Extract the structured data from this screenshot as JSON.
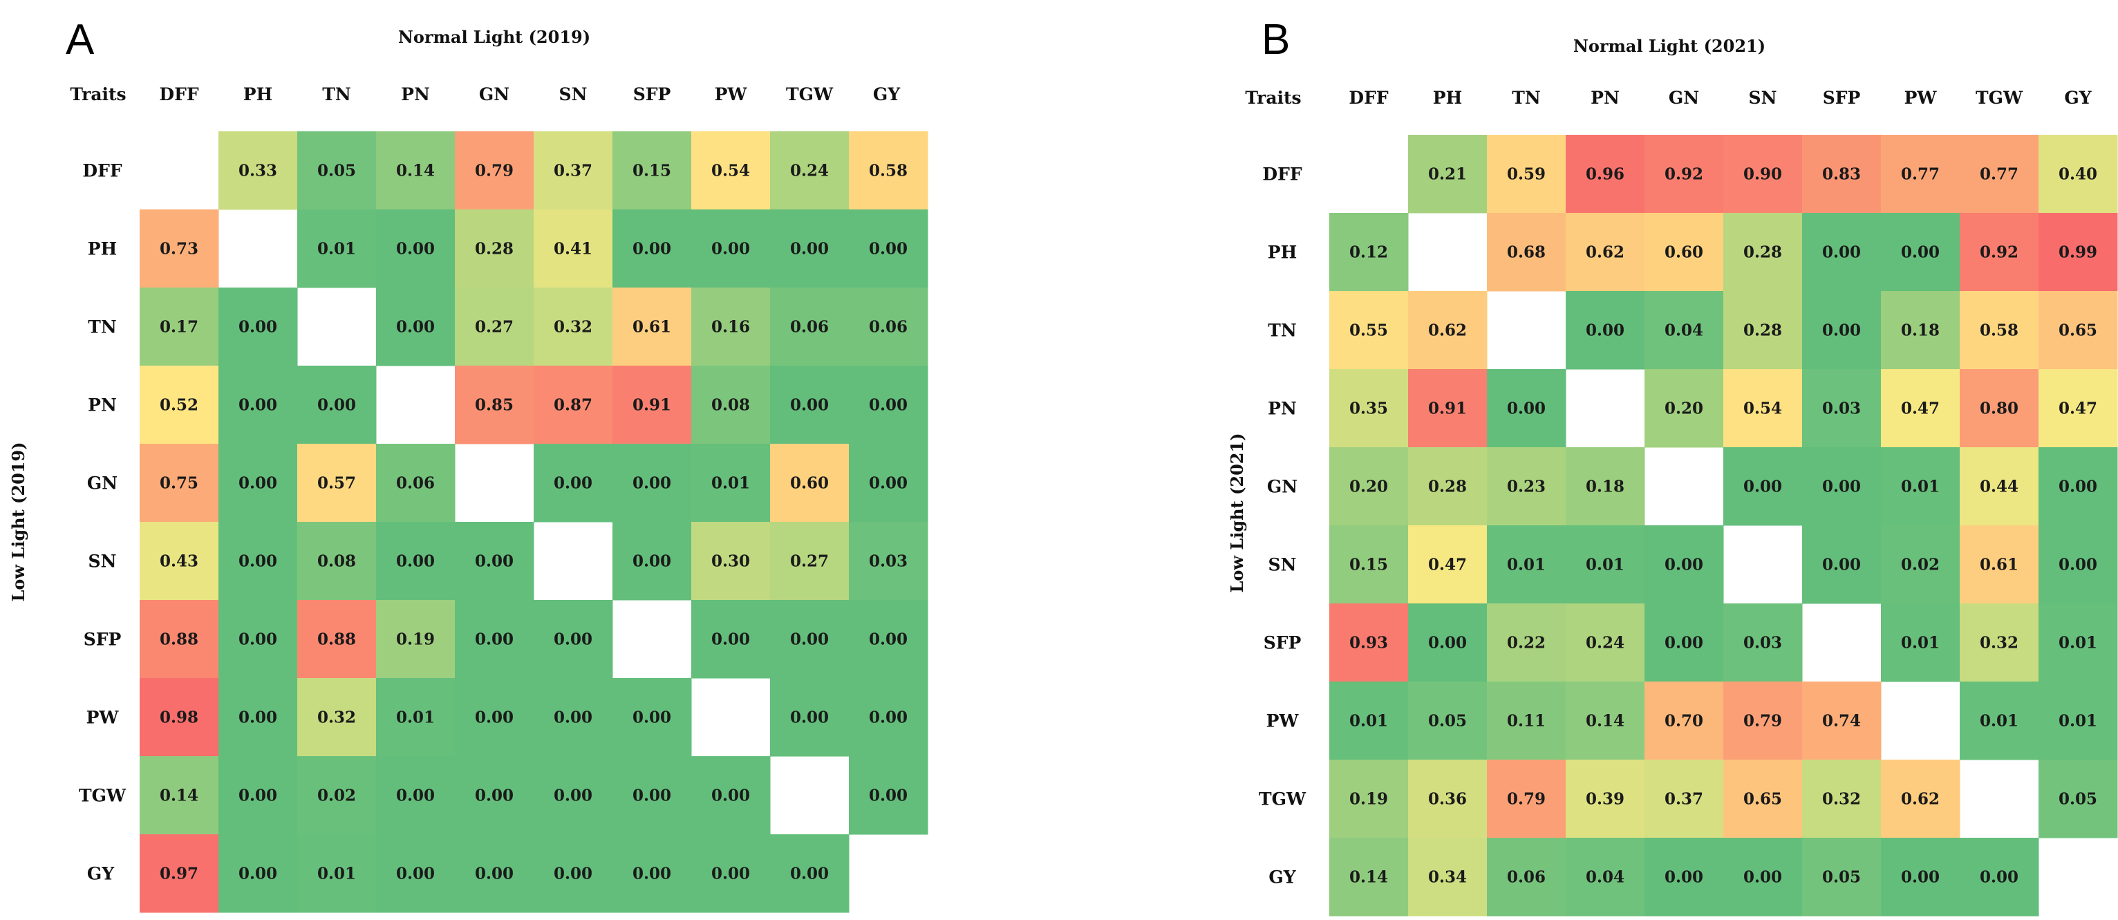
{
  "chart_data": [
    {
      "type": "heatmap",
      "panel_letter": "A",
      "title": "Normal Light (2019)",
      "ylabel": "Low Light (2019)",
      "corner_label": "Traits",
      "columns": [
        "DFF",
        "PH",
        "TN",
        "PN",
        "GN",
        "SN",
        "SFP",
        "PW",
        "TGW",
        "GY"
      ],
      "col_labels": [
        "DFF",
        "PH",
        "TN",
        "PN",
        "GN",
        "SN",
        "SFP",
        "PW",
        "TGW",
        "GY "
      ],
      "rows": [
        "DFF",
        "PH",
        "TN",
        "PN",
        "GN",
        "SN",
        "SFP",
        "PW",
        "TGW",
        "GY"
      ],
      "row_labels": [
        "DFF",
        "PH",
        "TN",
        "PN",
        "GN",
        "SN",
        "SFP",
        "PW",
        "TGW",
        "GY "
      ],
      "upper_triangle": "Normal Light (2019)",
      "lower_triangle": "Low Light (2019)",
      "values": [
        [
          null,
          "0.33",
          "0.05",
          "0.14",
          "0.79",
          "0.37",
          "0.15",
          "0.54",
          "0.24",
          "0.58"
        ],
        [
          "0.73",
          null,
          "0.01",
          "0.00",
          "0.28",
          "0.41",
          "0.00",
          "0.00",
          "0.00",
          "0.00"
        ],
        [
          "0.17",
          "0.00",
          null,
          "0.00",
          "0.27",
          "0.32",
          "0.61",
          "0.16",
          "0.06",
          "0.06"
        ],
        [
          "0.52",
          "0.00",
          "0.00",
          null,
          "0.85",
          "0.87",
          "0.91",
          "0.08",
          "0.00",
          "0.00"
        ],
        [
          "0.75",
          "0.00",
          "0.57",
          "0.06",
          null,
          "0.00",
          "0.00",
          "0.01",
          "0.60",
          "0.00"
        ],
        [
          "0.43",
          "0.00",
          "0.08",
          "0.00",
          "0.00",
          null,
          "0.00",
          "0.30",
          "0.27",
          "0.03"
        ],
        [
          "0.88",
          "0.00",
          "0.88",
          "0.19",
          "0.00",
          "0.00",
          null,
          "0.00",
          "0.00",
          "0.00"
        ],
        [
          "0.98",
          "0.00",
          "0.32",
          "0.01",
          "0.00",
          "0.00",
          "0.00",
          null,
          "0.00",
          "0.00"
        ],
        [
          "0.14",
          "0.00",
          "0.02",
          "0.00",
          "0.00",
          "0.00",
          "0.00",
          "0.00",
          null,
          "0.00"
        ],
        [
          "0.97",
          "0.00",
          "0.01",
          "0.00",
          "0.00",
          "0.00",
          "0.00",
          "0.00",
          "0.00",
          null
        ]
      ]
    },
    {
      "type": "heatmap",
      "panel_letter": "B",
      "title": "Normal Light (2021)",
      "ylabel": "Low Light      (2021)",
      "corner_label": "Traits",
      "columns": [
        "DFF",
        "PH",
        "TN",
        "PN",
        "GN",
        "SN",
        "SFP",
        "PW",
        "TGW",
        "GY"
      ],
      "col_labels": [
        "DFF",
        "PH",
        "TN",
        "PN",
        "GN",
        "SN",
        "SFP",
        "PW",
        "TGW",
        "GY"
      ],
      "rows": [
        "DFF",
        "PH",
        "TN",
        "PN",
        "GN",
        "SN",
        "SFP",
        "PW",
        "TGW",
        "GY"
      ],
      "row_labels": [
        "DFF",
        "PH",
        "TN",
        "PN",
        "GN",
        "SN",
        "SFP",
        "PW",
        "TGW",
        "GY"
      ],
      "upper_triangle": "Normal Light (2021)",
      "lower_triangle": "Low Light (2021)",
      "values": [
        [
          null,
          "0.21",
          "0.59",
          "0.96",
          "0.92",
          "0.90",
          "0.83",
          "0.77",
          "0.77",
          "0.40"
        ],
        [
          "0.12",
          null,
          "0.68",
          "0.62",
          "0.60",
          "0.28",
          "0.00",
          "0.00",
          "0.92",
          "0.99"
        ],
        [
          "0.55",
          "0.62",
          null,
          "0.00",
          "0.04",
          "0.28",
          "0.00",
          "0.18",
          "0.58",
          "0.65"
        ],
        [
          "0.35",
          "0.91",
          "0.00",
          null,
          "0.20",
          "0.54",
          "0.03",
          "0.47",
          "0.80",
          "0.47"
        ],
        [
          "0.20",
          "0.28",
          "0.23",
          "0.18",
          null,
          "0.00",
          "0.00",
          "0.01",
          "0.44",
          "0.00"
        ],
        [
          "0.15",
          "0.47",
          "0.01",
          "0.01",
          "0.00",
          null,
          "0.00",
          "0.02",
          "0.61",
          "0.00"
        ],
        [
          "0.93",
          "0.00",
          "0.22",
          "0.24",
          "0.00",
          "0.03",
          null,
          "0.01",
          "0.32",
          "0.01"
        ],
        [
          "0.01",
          "0.05",
          "0.11",
          "0.14",
          "0.70",
          "0.79",
          "0.74",
          null,
          "0.01",
          "0.01"
        ],
        [
          "0.19",
          "0.36",
          "0.79",
          "0.39",
          "0.37",
          "0.65",
          "0.32",
          "0.62",
          null,
          "0.05"
        ],
        [
          "0.14",
          "0.34",
          "0.06",
          "0.04",
          "0.00",
          "0.00",
          "0.05",
          "0.00",
          "0.00",
          null
        ]
      ]
    }
  ],
  "colors": {
    "scale_low": "#63be7b",
    "scale_mid": "#ffeb84",
    "scale_high": "#f8696b",
    "background": "#ffffff"
  }
}
